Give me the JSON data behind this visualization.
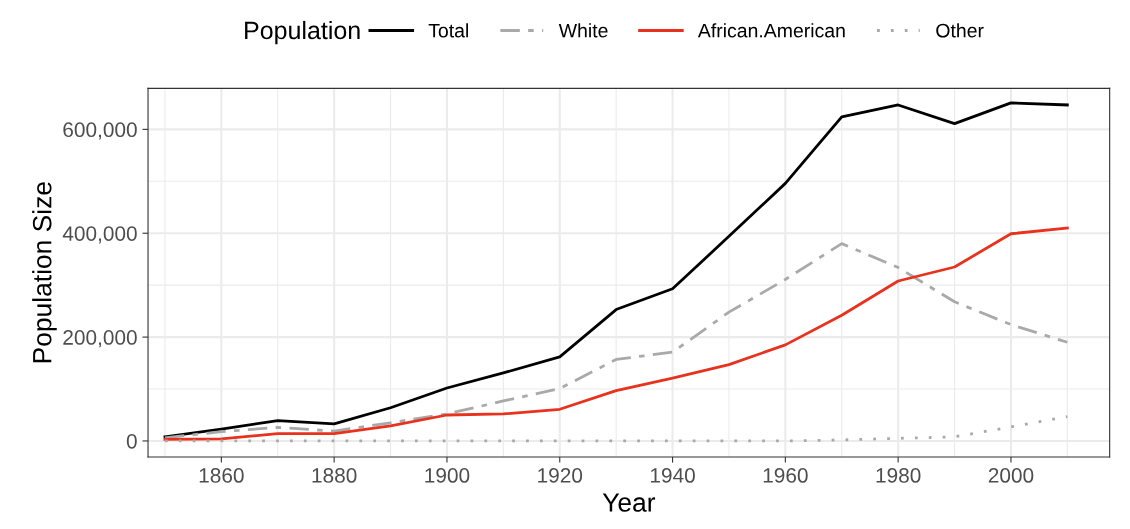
{
  "chart_data": {
    "type": "line",
    "xlabel": "Year",
    "ylabel": "Population Size",
    "legend_title": "Population",
    "x": [
      1850,
      1860,
      1870,
      1880,
      1890,
      1900,
      1910,
      1920,
      1930,
      1940,
      1950,
      1960,
      1970,
      1980,
      1990,
      2000,
      2010
    ],
    "series": [
      {
        "name": "Total",
        "color": "#000000",
        "line_style": "solid",
        "values": [
          8000,
          23000,
          39000,
          33000,
          64000,
          102000,
          131000,
          162000,
          253000,
          293000,
          394000,
          496000,
          624000,
          647000,
          611000,
          651000,
          647000
        ]
      },
      {
        "name": "White",
        "color": "#a9a9a9",
        "line_style": "dashed",
        "values": [
          6000,
          18000,
          26000,
          19000,
          35000,
          52000,
          77000,
          101000,
          157000,
          171000,
          248000,
          311000,
          380000,
          334000,
          268000,
          224000,
          190000
        ]
      },
      {
        "name": "African.American",
        "color": "#e8321e",
        "line_style": "solid",
        "values": [
          3000,
          4000,
          14000,
          14000,
          29000,
          50000,
          52000,
          61000,
          97000,
          121000,
          147000,
          185000,
          242000,
          308000,
          335000,
          399000,
          410000
        ]
      },
      {
        "name": "Other",
        "color": "#a9a9a9",
        "line_style": "dotted",
        "values": [
          0,
          0,
          0,
          0,
          0,
          0,
          0,
          0,
          0,
          0,
          0,
          0,
          2000,
          5000,
          8000,
          27000,
          47000
        ]
      }
    ],
    "xlim": [
      1847,
      2017.5
    ],
    "ylim": [
      -31000,
      679000
    ],
    "xticks": [
      1860,
      1880,
      1900,
      1920,
      1940,
      1960,
      1980,
      2000
    ],
    "yticks": [
      {
        "value": 0,
        "label": "0"
      },
      {
        "value": 200000,
        "label": "200,000"
      },
      {
        "value": 400000,
        "label": "400,000"
      },
      {
        "value": 600000,
        "label": "600,000"
      }
    ],
    "grid": true,
    "legend": "top"
  }
}
